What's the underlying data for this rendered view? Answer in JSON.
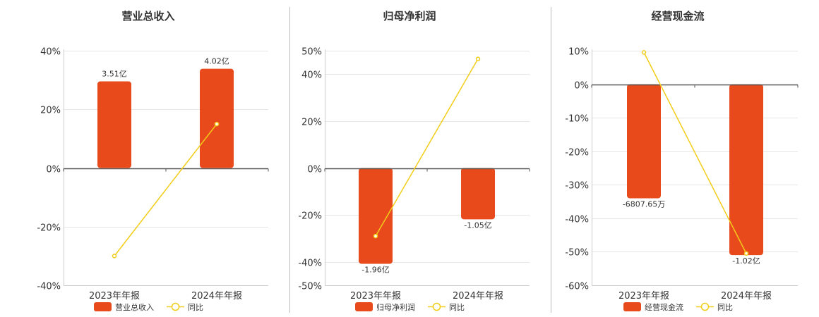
{
  "colors": {
    "bar": "#E84A1B",
    "line": "#F2CD1A",
    "axis": "#555555",
    "grid": "#E6E6E6",
    "divider": "#BBBBBB"
  },
  "chart_data": [
    {
      "type": "bar",
      "title": "营业总收入",
      "categories": [
        "2023年年报",
        "2024年年报"
      ],
      "series": [
        {
          "name": "营业总收入",
          "type": "bar",
          "values": [
            3.51,
            4.02
          ],
          "labels": [
            "3.51亿",
            "4.02亿"
          ]
        },
        {
          "name": "同比",
          "type": "line",
          "values": [
            -30,
            15
          ]
        }
      ],
      "bar_range": [
        -4.75,
        4.75
      ],
      "ylim": [
        -40,
        40
      ],
      "yticks": [
        "40%",
        "20%",
        "0%",
        "-20%",
        "-40%"
      ],
      "legend": "bottom"
    },
    {
      "type": "bar",
      "title": "归母净利润",
      "categories": [
        "2023年年报",
        "2024年年报"
      ],
      "series": [
        {
          "name": "归母净利润",
          "type": "bar",
          "values": [
            -1.96,
            -1.05
          ],
          "labels": [
            "-1.96亿",
            "-1.05亿"
          ]
        },
        {
          "name": "同比",
          "type": "line",
          "values": [
            -29,
            46.5
          ]
        }
      ],
      "bar_range": [
        -2.4,
        2.4
      ],
      "ylim": [
        -50,
        50
      ],
      "yticks": [
        "50%",
        "40%",
        "20%",
        "0%",
        "-20%",
        "-40%",
        "-50%"
      ],
      "legend": "bottom"
    },
    {
      "type": "bar",
      "title": "经营现金流",
      "categories": [
        "2023年年报",
        "2024年年报"
      ],
      "series": [
        {
          "name": "经营现金流",
          "type": "bar",
          "values": [
            -0.680765,
            -1.02
          ],
          "labels": [
            "-6807.65万",
            "-1.02亿"
          ]
        },
        {
          "name": "同比",
          "type": "line",
          "values": [
            9.5,
            -50.5
          ]
        }
      ],
      "bar_range": [
        -1.2,
        0.2
      ],
      "ylim": [
        -60,
        10
      ],
      "yticks": [
        "10%",
        "0%",
        "-10%",
        "-20%",
        "-30%",
        "-40%",
        "-50%",
        "-60%"
      ],
      "legend": "bottom"
    }
  ]
}
